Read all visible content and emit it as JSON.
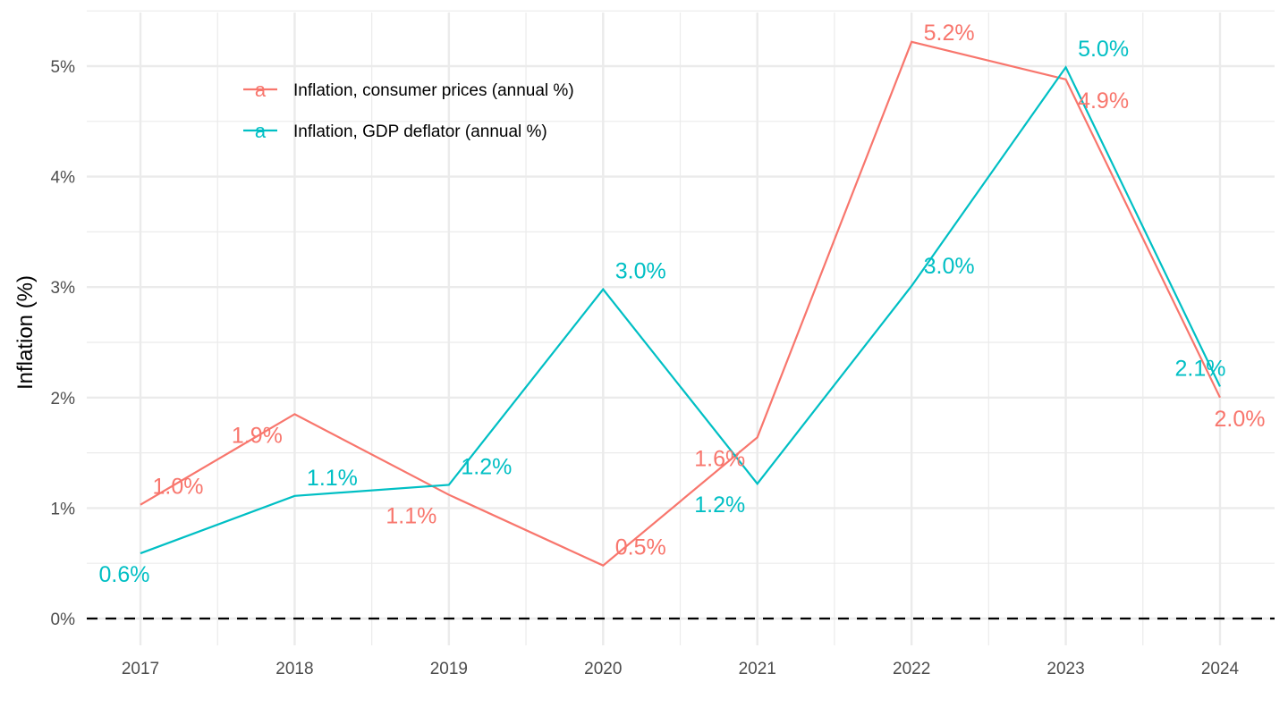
{
  "chart_data": {
    "type": "line",
    "title": "",
    "xlabel": "",
    "ylabel": "Inflation (%)",
    "x": [
      2017,
      2018,
      2019,
      2020,
      2021,
      2022,
      2023,
      2024
    ],
    "x_tick_labels": [
      "2017",
      "2018",
      "2019",
      "2020",
      "2021",
      "2022",
      "2023",
      "2024"
    ],
    "ylim": [
      -0.25,
      5.5
    ],
    "y_ticks": [
      0,
      1,
      2,
      3,
      4,
      5
    ],
    "y_tick_labels": [
      "0%",
      "1%",
      "2%",
      "3%",
      "4%",
      "5%"
    ],
    "grid": true,
    "reference_line": {
      "y": 0,
      "style": "dashed",
      "color": "#000000"
    },
    "legend": {
      "placement": "top-left-inside",
      "key_glyph": "a"
    },
    "series": [
      {
        "name": "Inflation, consumer prices (annual %)",
        "color": "#F8766D",
        "values": [
          1.03,
          1.85,
          1.12,
          0.48,
          1.64,
          5.22,
          4.88,
          2.0
        ],
        "labels": [
          "1.0%",
          "1.9%",
          "1.1%",
          "0.5%",
          "1.6%",
          "5.2%",
          "4.9%",
          "2.0%"
        ]
      },
      {
        "name": "Inflation, GDP deflator (annual %)",
        "color": "#00BFC4",
        "values": [
          0.59,
          1.11,
          1.21,
          2.98,
          1.22,
          3.01,
          4.99,
          2.1
        ],
        "labels": [
          "0.6%",
          "1.1%",
          "1.2%",
          "3.0%",
          "1.2%",
          "3.0%",
          "5.0%",
          "2.1%"
        ]
      }
    ]
  }
}
